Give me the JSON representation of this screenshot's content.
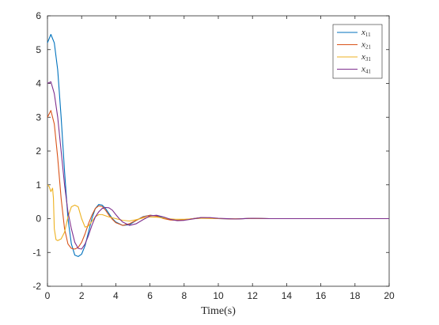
{
  "chart_data": {
    "type": "line",
    "xlabel": "Time(s)",
    "ylabel": "",
    "xlim": [
      0,
      20
    ],
    "ylim": [
      -2,
      6
    ],
    "xticks": [
      0,
      2,
      4,
      6,
      8,
      10,
      12,
      14,
      16,
      18,
      20
    ],
    "yticks": [
      -2,
      -1,
      0,
      1,
      2,
      3,
      4,
      5,
      6
    ],
    "xtick_labels": [
      "0",
      "2",
      "4",
      "6",
      "8",
      "10",
      "12",
      "14",
      "16",
      "18",
      "20"
    ],
    "ytick_labels": [
      "-2",
      "-1",
      "0",
      "1",
      "2",
      "3",
      "4",
      "5",
      "6"
    ],
    "grid": false,
    "legend": {
      "placement": "top-right"
    },
    "series": [
      {
        "name": "x11",
        "base": "x",
        "sub": "11",
        "color": "#0072BD",
        "x": [
          0,
          0.2,
          0.4,
          0.6,
          0.8,
          1.0,
          1.2,
          1.4,
          1.6,
          1.8,
          2.0,
          2.2,
          2.4,
          2.6,
          2.8,
          3.0,
          3.2,
          3.4,
          3.6,
          3.8,
          4.0,
          4.4,
          4.8,
          5.2,
          5.6,
          6.0,
          6.4,
          6.8,
          7.2,
          7.6,
          8.0,
          8.5,
          9.0,
          9.5,
          10.0,
          11.0,
          12.0,
          13.0,
          14.0,
          16.0,
          18.0,
          20.0
        ],
        "y": [
          5.2,
          5.45,
          5.2,
          4.4,
          3.0,
          1.4,
          0.0,
          -0.75,
          -1.08,
          -1.12,
          -1.05,
          -0.8,
          -0.4,
          0.0,
          0.3,
          0.42,
          0.4,
          0.3,
          0.15,
          0.0,
          -0.1,
          -0.2,
          -0.18,
          -0.05,
          0.06,
          0.1,
          0.08,
          0.02,
          -0.03,
          -0.05,
          -0.04,
          0.0,
          0.03,
          0.02,
          0.0,
          -0.01,
          0.01,
          0.0,
          0.0,
          0.0,
          0.0,
          0.0
        ]
      },
      {
        "name": "x21",
        "base": "x",
        "sub": "21",
        "color": "#D95319",
        "x": [
          0,
          0.2,
          0.4,
          0.6,
          0.8,
          1.0,
          1.2,
          1.4,
          1.6,
          1.8,
          2.0,
          2.2,
          2.4,
          2.6,
          2.8,
          3.0,
          3.2,
          3.4,
          3.6,
          3.8,
          4.0,
          4.4,
          4.8,
          5.2,
          5.6,
          6.0,
          6.4,
          6.8,
          7.2,
          7.6,
          8.0,
          8.5,
          9.0,
          9.5,
          10.0,
          11.0,
          12.0,
          13.0,
          14.0,
          16.0,
          18.0,
          20.0
        ],
        "y": [
          3.0,
          3.2,
          2.8,
          1.8,
          0.6,
          -0.3,
          -0.75,
          -0.88,
          -0.9,
          -0.85,
          -0.7,
          -0.45,
          -0.15,
          0.1,
          0.3,
          0.38,
          0.36,
          0.25,
          0.1,
          -0.02,
          -0.12,
          -0.2,
          -0.15,
          -0.05,
          0.05,
          0.1,
          0.07,
          0.0,
          -0.04,
          -0.05,
          -0.03,
          0.0,
          0.03,
          0.02,
          0.0,
          -0.01,
          0.01,
          0.0,
          0.0,
          0.0,
          0.0,
          0.0
        ]
      },
      {
        "name": "x31",
        "base": "x",
        "sub": "31",
        "color": "#EDB120",
        "x": [
          0,
          0.1,
          0.2,
          0.3,
          0.35,
          0.4,
          0.5,
          0.6,
          0.8,
          1.0,
          1.2,
          1.4,
          1.6,
          1.8,
          2.0,
          2.2,
          2.4,
          2.6,
          2.8,
          3.0,
          3.2,
          3.6,
          4.0,
          4.4,
          4.8,
          5.2,
          5.6,
          6.0,
          6.5,
          7.0,
          7.5,
          8.0,
          9.0,
          10.0,
          12.0,
          14.0,
          16.0,
          18.0,
          20.0
        ],
        "y": [
          1.0,
          0.95,
          0.8,
          0.9,
          0.6,
          -0.3,
          -0.62,
          -0.65,
          -0.6,
          -0.4,
          0.05,
          0.35,
          0.4,
          0.35,
          0.0,
          -0.25,
          -0.22,
          -0.08,
          0.05,
          0.12,
          0.12,
          0.05,
          0.0,
          -0.05,
          -0.07,
          -0.03,
          0.02,
          0.05,
          0.04,
          0.0,
          -0.02,
          -0.02,
          0.01,
          0.0,
          0.0,
          0.0,
          0.0,
          0.0,
          0.0
        ]
      },
      {
        "name": "x41",
        "base": "x",
        "sub": "41",
        "color": "#7E2F8E",
        "x": [
          0,
          0.2,
          0.4,
          0.6,
          0.8,
          1.0,
          1.2,
          1.4,
          1.6,
          1.8,
          2.0,
          2.2,
          2.4,
          2.6,
          2.8,
          3.0,
          3.2,
          3.4,
          3.6,
          3.8,
          4.0,
          4.2,
          4.4,
          4.8,
          5.2,
          5.6,
          6.0,
          6.4,
          6.8,
          7.2,
          7.6,
          8.0,
          8.5,
          9.0,
          9.5,
          10.0,
          11.0,
          12.0,
          13.0,
          14.0,
          16.0,
          18.0,
          20.0
        ],
        "y": [
          4.0,
          4.05,
          3.7,
          3.0,
          2.0,
          1.0,
          0.2,
          -0.3,
          -0.7,
          -0.88,
          -0.9,
          -0.75,
          -0.5,
          -0.2,
          0.05,
          0.2,
          0.3,
          0.33,
          0.32,
          0.25,
          0.12,
          0.0,
          -0.1,
          -0.2,
          -0.15,
          -0.03,
          0.08,
          0.1,
          0.05,
          -0.02,
          -0.06,
          -0.05,
          -0.01,
          0.03,
          0.03,
          0.01,
          -0.01,
          0.01,
          0.0,
          0.0,
          0.0,
          0.0,
          0.0
        ]
      }
    ]
  }
}
